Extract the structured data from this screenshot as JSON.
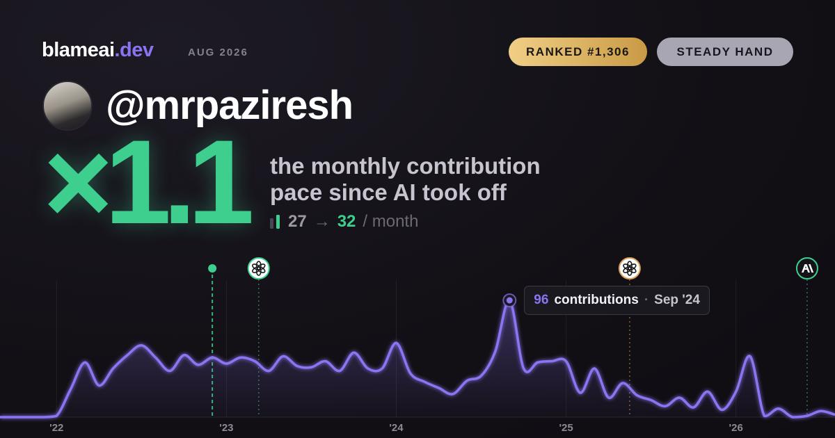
{
  "header": {
    "brand": "blameai",
    "brand_suffix": ".dev",
    "date": "AUG 2026",
    "badges": [
      "RANKED #1,306",
      "STEADY HAND"
    ]
  },
  "profile": {
    "handle": "@mrpaziresh"
  },
  "hero": {
    "multiplier": "×1.1",
    "caption_lines": [
      "the monthly contribution",
      "pace since AI took off"
    ],
    "before": 27,
    "arrow": "→",
    "after": 32,
    "unit": "/ month"
  },
  "chart_data": {
    "type": "line",
    "fill": true,
    "color": "#8b74f2",
    "x": [
      2021.667,
      2021.75,
      2021.833,
      2021.917,
      2022,
      2022.083,
      2022.167,
      2022.25,
      2022.333,
      2022.417,
      2022.5,
      2022.583,
      2022.667,
      2022.75,
      2022.833,
      2022.917,
      2023,
      2023.083,
      2023.167,
      2023.25,
      2023.333,
      2023.417,
      2023.5,
      2023.583,
      2023.667,
      2023.75,
      2023.833,
      2023.917,
      2024,
      2024.083,
      2024.167,
      2024.25,
      2024.333,
      2024.417,
      2024.5,
      2024.583,
      2024.667,
      2024.75,
      2024.833,
      2024.917,
      2025,
      2025.083,
      2025.167,
      2025.25,
      2025.333,
      2025.417,
      2025.5,
      2025.583,
      2025.667,
      2025.75,
      2025.833,
      2025.917,
      2026,
      2026.083,
      2026.167,
      2026.25,
      2026.333,
      2026.417,
      2026.5,
      2026.583
    ],
    "values": [
      0,
      0,
      0,
      0,
      1,
      23,
      45,
      26,
      40,
      51,
      59,
      49,
      38,
      51,
      43,
      49,
      44,
      49,
      46,
      38,
      50,
      42,
      41,
      46,
      38,
      53,
      40,
      40,
      61,
      36,
      29,
      24,
      19,
      30,
      34,
      54,
      96,
      40,
      45,
      46,
      46,
      20,
      40,
      16,
      28,
      18,
      14,
      9,
      16,
      8,
      21,
      6,
      21,
      50,
      1,
      7,
      0,
      1,
      5,
      2
    ],
    "xlim": [
      2021.667,
      2026.583
    ],
    "ylim": [
      0,
      110
    ],
    "xticks": [
      {
        "value": 2022,
        "label": "'22"
      },
      {
        "value": 2023,
        "label": "'23"
      },
      {
        "value": 2024,
        "label": "'24"
      },
      {
        "value": 2025,
        "label": "'25"
      },
      {
        "value": 2026,
        "label": "'26"
      }
    ],
    "grid": true,
    "events": [
      {
        "x": 2022.917,
        "icon": "dot",
        "color": "#3ecf8e"
      },
      {
        "x": 2023.19,
        "icon": "openai",
        "color": "#3ecf8e"
      },
      {
        "x": 2025.374,
        "icon": "openai",
        "color": "#d9a05b"
      },
      {
        "x": 2026.419,
        "icon": "anthropic",
        "color": "#3ecf8e"
      }
    ],
    "tooltip": {
      "label": "contributions",
      "separator": "·",
      "date": "Sep '24"
    }
  }
}
